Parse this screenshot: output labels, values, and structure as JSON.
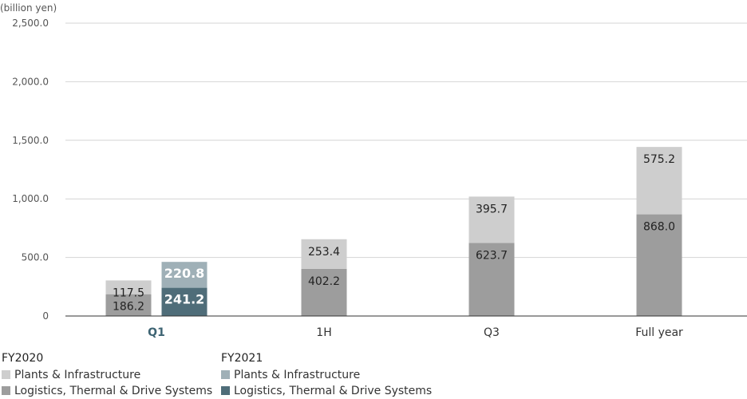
{
  "chart_data": {
    "type": "bar",
    "ylabel": "(billion yen)",
    "ylim": [
      0,
      2500
    ],
    "yticks": [
      {
        "value": 0,
        "label": "0"
      },
      {
        "value": 500,
        "label": "500.0"
      },
      {
        "value": 1000,
        "label": "1,000.0"
      },
      {
        "value": 1500,
        "label": "1,500.0"
      },
      {
        "value": 2000,
        "label": "2,000.0"
      },
      {
        "value": 2500,
        "label": "2,500.0"
      }
    ],
    "grid": true,
    "categories": [
      "Q1",
      "1H",
      "Q3",
      "Full year"
    ],
    "highlighted_category": "Q1",
    "groups": [
      {
        "name": "FY2020",
        "series": [
          {
            "name": "Logistics, Thermal & Drive Systems",
            "values": [
              186.2,
              402.2,
              623.7,
              868.0
            ],
            "labels": [
              "186.2",
              "402.2",
              "623.7",
              "868.0"
            ],
            "color": "#9d9d9d"
          },
          {
            "name": "Plants & Infrastructure",
            "values": [
              117.5,
              253.4,
              395.7,
              575.2
            ],
            "labels": [
              "117.5",
              "253.4",
              "395.7",
              "575.2"
            ],
            "color": "#cecece"
          }
        ]
      },
      {
        "name": "FY2021",
        "series": [
          {
            "name": "Logistics, Thermal & Drive Systems",
            "values": [
              241.2,
              null,
              null,
              null
            ],
            "labels": [
              "241.2",
              "",
              "",
              ""
            ],
            "color": "#4f6d79"
          },
          {
            "name": "Plants & Infrastructure",
            "values": [
              220.8,
              null,
              null,
              null
            ],
            "labels": [
              "220.8",
              "",
              "",
              ""
            ],
            "color": "#9fb0b7"
          }
        ]
      }
    ],
    "legend": {
      "position": "bottom-left",
      "groups": [
        {
          "title": "FY2020",
          "items": [
            {
              "label": "Plants & Infrastructure",
              "color": "#cecece"
            },
            {
              "label": "Logistics, Thermal & Drive Systems",
              "color": "#9d9d9d"
            }
          ]
        },
        {
          "title": "FY2021",
          "items": [
            {
              "label": "Plants & Infrastructure",
              "color": "#9fb0b7"
            },
            {
              "label": "Logistics, Thermal & Drive Systems",
              "color": "#4f6d79"
            }
          ]
        }
      ]
    }
  }
}
